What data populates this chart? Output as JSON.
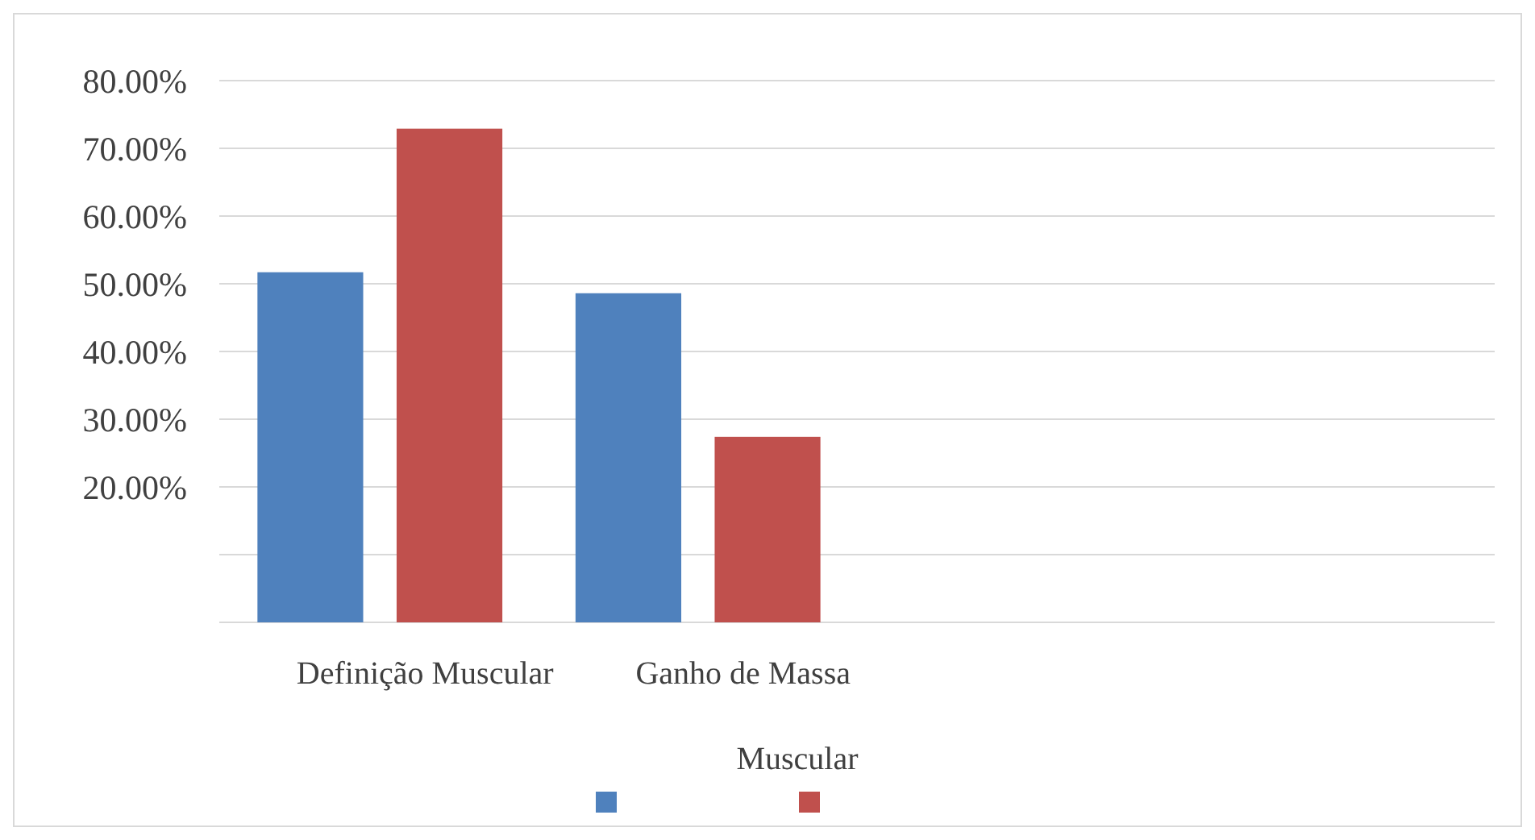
{
  "chart_data": {
    "type": "bar",
    "categories": [
      "Definição Muscular",
      "Ganho de Massa",
      null,
      null
    ],
    "series": [
      {
        "color": "#4f81bd",
        "values": [
          51.7,
          48.6,
          null,
          null
        ]
      },
      {
        "color": "#c0504d",
        "values": [
          72.9,
          27.4,
          null,
          null
        ]
      }
    ],
    "ylim": [
      0,
      80
    ],
    "yticks": [
      {
        "value": 0,
        "label": null
      },
      {
        "value": 10,
        "label": null
      },
      {
        "value": 20,
        "label": "20.00%"
      },
      {
        "value": 30,
        "label": "30.00%"
      },
      {
        "value": 40,
        "label": "40.00%"
      },
      {
        "value": 50,
        "label": "50.00%"
      },
      {
        "value": 60,
        "label": "60.00%"
      },
      {
        "value": 70,
        "label": "70.00%"
      },
      {
        "value": 80,
        "label": "80.00%"
      }
    ],
    "grid": "y",
    "legend_title": "Muscular"
  }
}
